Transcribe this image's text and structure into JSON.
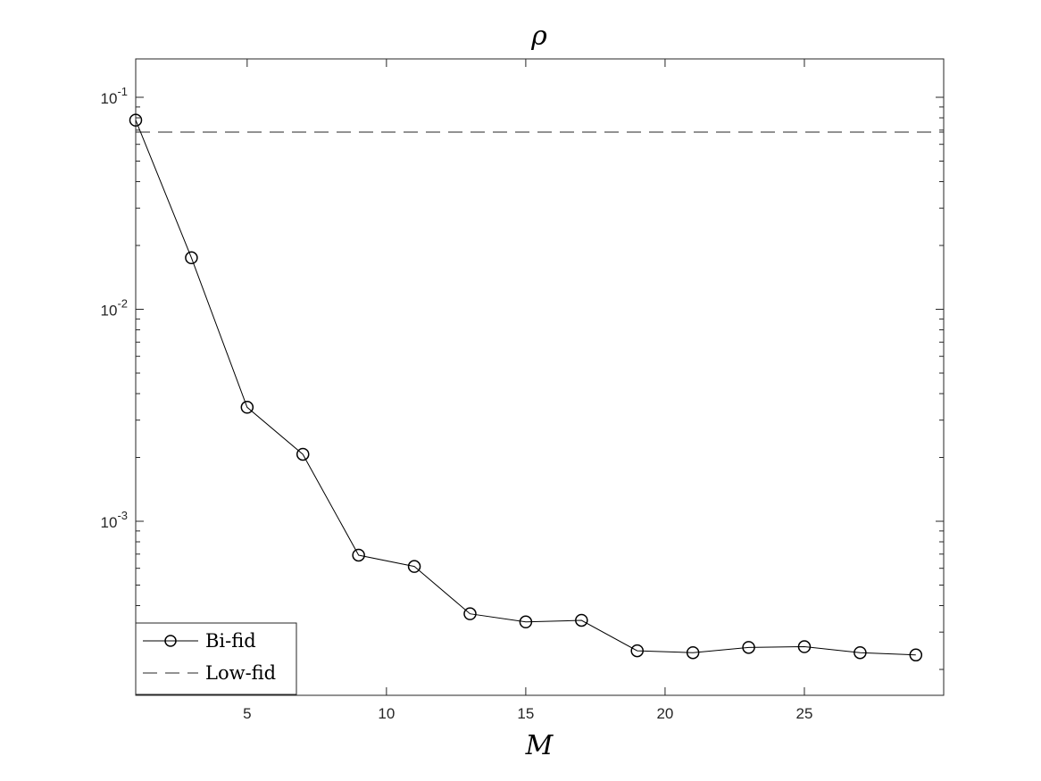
{
  "chart_data": {
    "type": "line",
    "title": "ρ",
    "xlabel": "M",
    "ylabel": "",
    "xlim": [
      1,
      30
    ],
    "ylim": [
      0.00016,
      0.16
    ],
    "yscale": "log",
    "grid": false,
    "legend_position": "bottom-left",
    "x_ticks": [
      5,
      10,
      15,
      20,
      25
    ],
    "y_ticks": [
      {
        "value": 0.1,
        "base": "10",
        "exp": "-1"
      },
      {
        "value": 0.01,
        "base": "10",
        "exp": "-2"
      },
      {
        "value": 0.001,
        "base": "10",
        "exp": "-3"
      }
    ],
    "series": [
      {
        "name": "Bi-fid",
        "style": "solid-circle-markers",
        "color": "#000000",
        "x": [
          1,
          3,
          5,
          7,
          9,
          11,
          13,
          15,
          17,
          19,
          21,
          23,
          25,
          27,
          29
        ],
        "y": [
          0.078,
          0.0175,
          0.00345,
          0.00207,
          0.000692,
          0.000612,
          0.000366,
          0.000335,
          0.000341,
          0.000245,
          0.00024,
          0.000254,
          0.000256,
          0.00024,
          0.000234
        ]
      },
      {
        "name": "Low-fid",
        "style": "dashed",
        "color": "#000000",
        "y_constant": 0.0685
      }
    ]
  }
}
